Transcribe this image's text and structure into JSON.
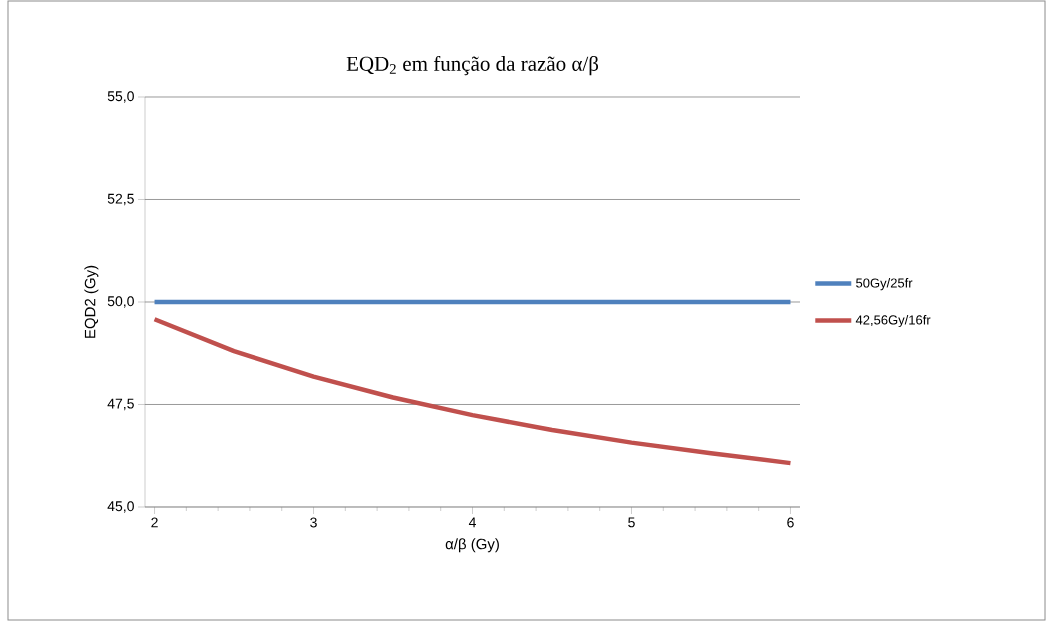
{
  "chart_data": {
    "type": "line",
    "title": "EQD$_{2}$ em função da razão α/β",
    "xlabel": "α/β (Gy)",
    "ylabel": "EQD2 (Gy)",
    "x": [
      2,
      2.5,
      3,
      3.5,
      4,
      4.5,
      5,
      5.5,
      6
    ],
    "series": [
      {
        "name": "50Gy/25fr",
        "color": "#4f81bd",
        "values": [
          50,
          50,
          50,
          50,
          50,
          50,
          50,
          50,
          50
        ]
      },
      {
        "name": "42,56Gy/16fr",
        "color": "#c0504d",
        "values": [
          49.58,
          48.8,
          48.18,
          47.67,
          47.24,
          46.88,
          46.57,
          46.31,
          46.07
        ]
      }
    ],
    "xlim": [
      1.94,
      6.06
    ],
    "ylim": [
      45,
      55
    ],
    "xticks": [
      2,
      3,
      4,
      5,
      6
    ],
    "yticks": [
      {
        "value": 45,
        "label": "45,0"
      },
      {
        "value": 47.5,
        "label": "47,5"
      },
      {
        "value": 50,
        "label": "50,0"
      },
      {
        "value": 52.5,
        "label": "52,5"
      },
      {
        "value": 55,
        "label": "55,0"
      }
    ],
    "grid": "y",
    "legend": "right",
    "marker": "none",
    "line_style": "solid"
  }
}
